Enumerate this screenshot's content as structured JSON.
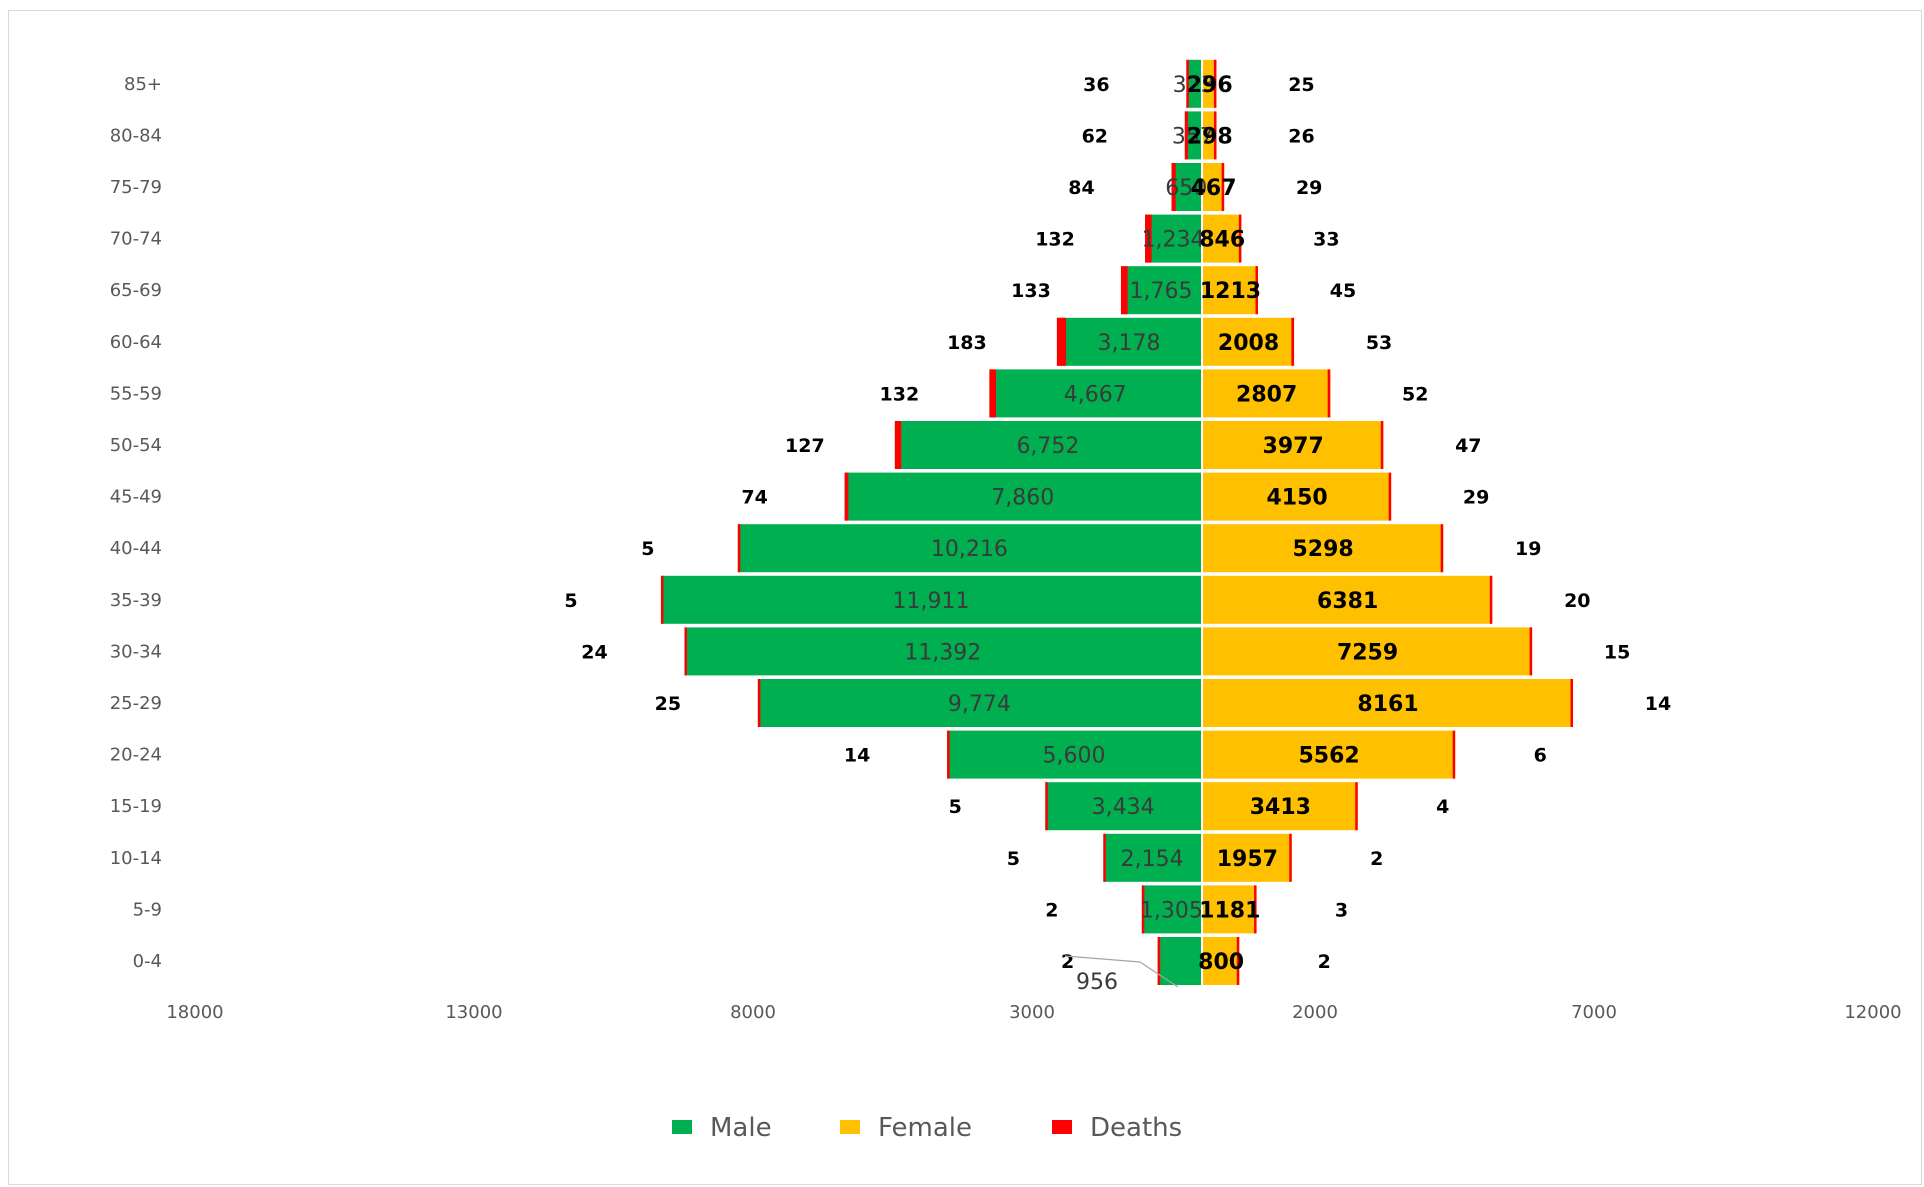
{
  "chart_data": {
    "type": "bar",
    "orientation": "horizontal-population-pyramid",
    "categories": [
      "0-4",
      "5-9",
      "10-14",
      "15-19",
      "20-24",
      "25-29",
      "30-34",
      "35-39",
      "40-44",
      "45-49",
      "50-54",
      "55-59",
      "60-64",
      "65-69",
      "70-74",
      "75-79",
      "80-84",
      "85+"
    ],
    "series": [
      {
        "name": "Male",
        "color": "#00b050",
        "values": [
          956,
          1305,
          2154,
          3434,
          5600,
          9774,
          11392,
          11911,
          10216,
          7860,
          6752,
          4667,
          3178,
          1765,
          1234,
          650,
          357,
          323
        ],
        "labels": [
          "956",
          "1,305",
          "2,154",
          "3,434",
          "5,600",
          "9,774",
          "11,392",
          "11,911",
          "10,216",
          "7,860",
          "6,752",
          "4,667",
          "3,178",
          "1,765",
          "1,234",
          "650",
          "357",
          "323"
        ]
      },
      {
        "name": "Female",
        "color": "#ffc000",
        "values": [
          800,
          1181,
          1957,
          3413,
          5562,
          8161,
          7259,
          6381,
          5298,
          4150,
          3977,
          2807,
          2008,
          1213,
          846,
          467,
          298,
          296
        ],
        "labels": [
          "800",
          "1181",
          "1957",
          "3413",
          "5562",
          "8161",
          "7259",
          "6381",
          "5298",
          "4150",
          "3977",
          "2807",
          "2008",
          "1213",
          "846",
          "467",
          "298",
          "296"
        ]
      },
      {
        "name": "Deaths",
        "color": "#ff0000",
        "male_values": [
          2,
          2,
          5,
          5,
          14,
          25,
          24,
          5,
          5,
          74,
          127,
          132,
          183,
          133,
          132,
          84,
          62,
          36
        ],
        "female_values": [
          2,
          3,
          2,
          4,
          6,
          14,
          15,
          20,
          19,
          29,
          47,
          52,
          53,
          45,
          33,
          29,
          26,
          25
        ]
      }
    ],
    "x_ticks": [
      "18000",
      "13000",
      "8000",
      "3000",
      "2000",
      "7000",
      "12000"
    ],
    "xlim": [
      -18000,
      12000
    ],
    "legend_position": "bottom"
  }
}
